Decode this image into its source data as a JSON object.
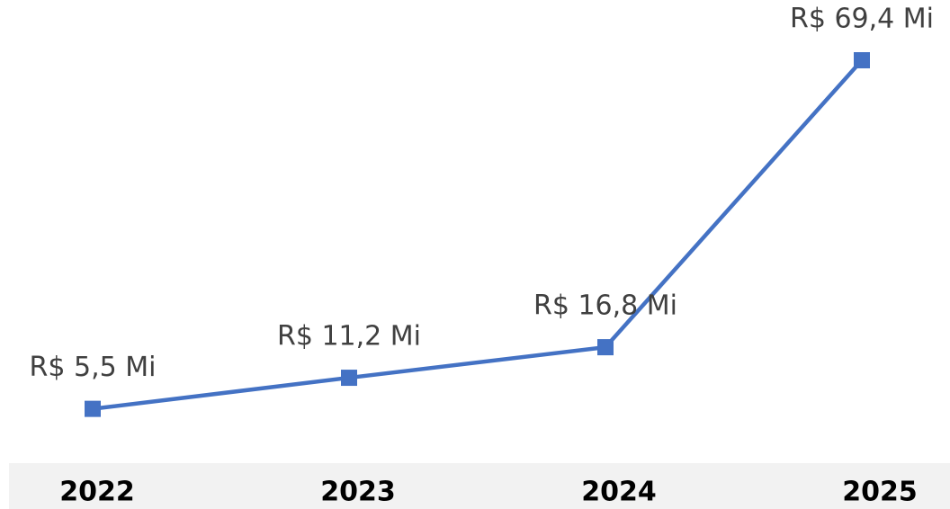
{
  "chart_data": {
    "type": "line",
    "categories": [
      "2022",
      "2023",
      "2024",
      "2025"
    ],
    "values": [
      5.5,
      11.2,
      16.8,
      69.4
    ],
    "value_labels": [
      "R$ 5,5 Mi",
      "R$ 11,2 Mi",
      "R$ 16,8 Mi",
      "R$ 69,4 Mi"
    ],
    "color": "#4472c4"
  }
}
